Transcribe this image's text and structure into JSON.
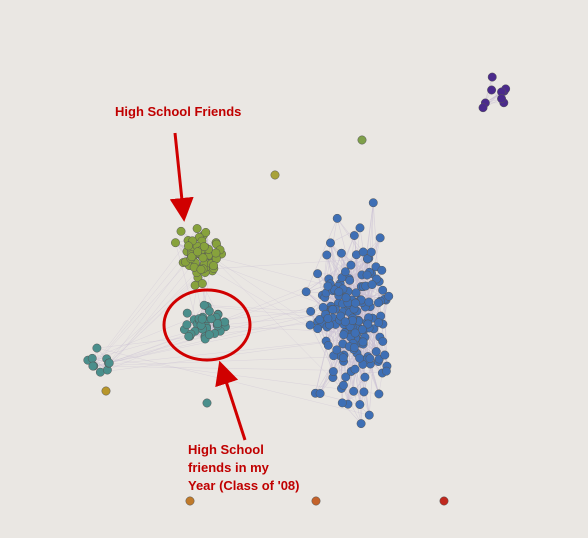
{
  "annotations": [
    {
      "lines": [
        "High School Friends"
      ]
    },
    {
      "lines": [
        "High School",
        "friends in my",
        "Year (Class of '08)"
      ]
    }
  ]
}
